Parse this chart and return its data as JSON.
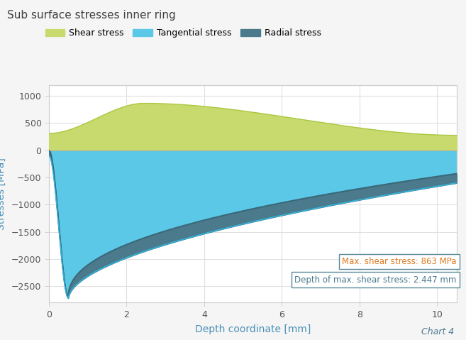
{
  "title": "Sub surface stresses inner ring",
  "xlabel": "Depth coordinate [mm]",
  "ylabel": "Stresses [MPa]",
  "chart_label": "Chart 4",
  "xlim": [
    0,
    10.5
  ],
  "ylim": [
    -2800,
    1200
  ],
  "yticks": [
    -2500,
    -2000,
    -1500,
    -1000,
    -500,
    0,
    500,
    1000
  ],
  "xticks": [
    0,
    2,
    4,
    6,
    8,
    10
  ],
  "legend_labels": [
    "Shear stress",
    "Tangential stress",
    "Radial stress"
  ],
  "shear_color": "#c8da6e",
  "tangential_color": "#5bc8e8",
  "radial_color": "#4a7a8c",
  "annotation1": "Max. shear stress: 863 MPa",
  "annotation2": "Depth of max. shear stress: 2.447 mm",
  "annotation1_text_color": "#e07820",
  "annotation2_text_color": "#4a7a8c",
  "bg_color": "#f5f5f5",
  "plot_bg_color": "#ffffff",
  "grid_color": "#e0e0e0",
  "title_color": "#404040",
  "axis_label_color": "#4a90b8",
  "tick_label_color": "#555555",
  "spine_color": "#cccccc",
  "hline_color": "#5a9ab8",
  "zero_line_color": "#aaaaaa",
  "shear_line_color": "#aac840",
  "tangential_line_color": "#30b8e0",
  "radial_line_color": "#3a6878"
}
